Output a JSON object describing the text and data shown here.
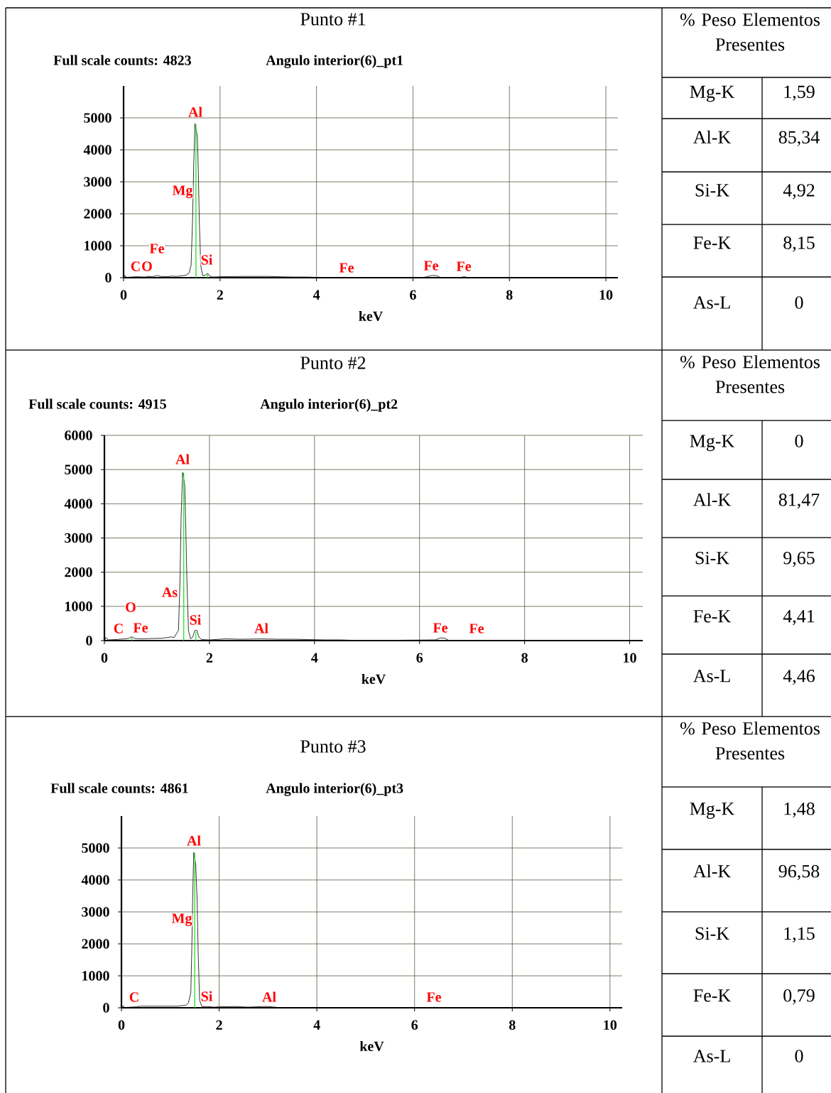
{
  "chart_data": [
    {
      "type": "line",
      "title": "Punto #1",
      "xlabel": "keV",
      "annotations": [
        "Full scale counts: 4823",
        "Angulo interior(6)_pt1",
        "Al",
        "Mg",
        "Fe",
        "C",
        "O",
        "Si",
        "Fe",
        "Fe",
        "Fe"
      ],
      "xlim": [
        0,
        10.25
      ],
      "xticks": [
        0,
        2,
        4,
        6,
        8,
        10
      ],
      "ylim": [
        0,
        6000
      ],
      "yticks": [
        0,
        1000,
        2000,
        3000,
        4000,
        5000
      ],
      "grid": true,
      "series": [
        {
          "type": "line",
          "color": "#000000",
          "x": [
            0,
            0.03,
            0.06,
            0.15,
            0.28,
            0.45,
            0.52,
            0.6,
            0.7,
            0.76,
            0.9,
            1.0,
            1.1,
            1.2,
            1.3,
            1.36,
            1.4,
            1.43,
            1.455,
            1.48,
            1.53,
            1.55,
            1.57,
            1.6,
            1.64,
            1.7,
            1.74,
            1.78,
            1.85,
            2.0,
            2.5,
            3.0,
            3.2,
            3.5,
            3.8,
            4.0,
            4.3,
            4.5,
            6.2,
            6.32,
            6.4,
            6.5,
            6.56,
            7.0,
            7.06,
            7.12,
            10.2
          ],
          "values": [
            0,
            70,
            10,
            20,
            30,
            20,
            40,
            30,
            70,
            40,
            30,
            50,
            40,
            60,
            80,
            150,
            400,
            1770,
            3570,
            4823,
            4420,
            3300,
            1790,
            370,
            60,
            80,
            140,
            60,
            20,
            30,
            40,
            40,
            30,
            20,
            20,
            10,
            10,
            0,
            0,
            40,
            70,
            60,
            10,
            10,
            30,
            10,
            0
          ]
        },
        {
          "type": "bar",
          "color": "#2ee62e",
          "x": [
            1.5,
            1.74
          ],
          "values": [
            4800,
            120
          ]
        }
      ]
    },
    {
      "type": "other",
      "title": "% Peso Elementos Presentes",
      "categories": [
        "Mg-K",
        "Al-K",
        "Si-K",
        "Fe-K",
        "As-L"
      ],
      "annotations": [
        "1,59",
        "85,34",
        "4,92",
        "8,15",
        "0"
      ]
    },
    {
      "type": "line",
      "title": "Punto #2",
      "xlabel": "keV",
      "annotations": [
        "Full scale counts: 4915",
        "Angulo interior(6)_pt2",
        "Al",
        "As",
        "O",
        "C",
        "Fe",
        "Si",
        "Al",
        "Fe",
        "Fe"
      ],
      "xlim": [
        0,
        10.25
      ],
      "xticks": [
        0,
        2,
        4,
        6,
        8,
        10
      ],
      "ylim": [
        0,
        6000
      ],
      "yticks": [
        0,
        1000,
        2000,
        3000,
        4000,
        5000,
        6000
      ],
      "grid": true,
      "series": [
        {
          "type": "line",
          "color": "#000000",
          "x": [
            0,
            0.03,
            0.07,
            0.2,
            0.3,
            0.45,
            0.52,
            0.58,
            0.7,
            0.9,
            1.1,
            1.2,
            1.28,
            1.33,
            1.37,
            1.41,
            1.44,
            1.46,
            1.49,
            1.53,
            1.55,
            1.57,
            1.6,
            1.64,
            1.68,
            1.72,
            1.76,
            1.8,
            1.85,
            2.0,
            2.3,
            2.6,
            3.0,
            3.3,
            3.6,
            3.9,
            4.2,
            4.5,
            4.7,
            4.8,
            6.3,
            6.4,
            6.48,
            6.55,
            10.2
          ],
          "values": [
            0,
            90,
            20,
            30,
            40,
            60,
            110,
            60,
            50,
            60,
            70,
            90,
            110,
            90,
            200,
            300,
            1780,
            3600,
            4915,
            4530,
            3240,
            1840,
            300,
            50,
            100,
            290,
            300,
            100,
            30,
            20,
            50,
            40,
            50,
            40,
            40,
            30,
            20,
            20,
            10,
            0,
            20,
            80,
            70,
            10,
            0
          ]
        },
        {
          "type": "bar",
          "color": "#2ee62e",
          "x": [
            0.52,
            1.51,
            1.74
          ],
          "values": [
            90,
            4900,
            250
          ]
        }
      ]
    },
    {
      "type": "other",
      "title": "% Peso Elementos Presentes",
      "categories": [
        "Mg-K",
        "Al-K",
        "Si-K",
        "Fe-K",
        "As-L"
      ],
      "annotations": [
        "0",
        "81,47",
        "9,65",
        "4,41",
        "4,46"
      ]
    },
    {
      "type": "line",
      "title": "Punto #3",
      "xlabel": "keV",
      "annotations": [
        "Full scale counts: 4861",
        "Angulo interior(6)_pt3",
        "Al",
        "Mg",
        "C",
        "Si",
        "Al",
        "Fe"
      ],
      "xlim": [
        0,
        10.25
      ],
      "xticks": [
        0,
        2,
        4,
        6,
        8,
        10
      ],
      "ylim": [
        0,
        6000
      ],
      "yticks": [
        0,
        1000,
        2000,
        3000,
        4000,
        5000
      ],
      "grid": true,
      "series": [
        {
          "type": "line",
          "color": "#000000",
          "x": [
            0,
            0.03,
            0.07,
            0.2,
            0.3,
            0.4,
            0.6,
            0.8,
            1.0,
            1.15,
            1.25,
            1.32,
            1.37,
            1.42,
            1.44,
            1.46,
            1.48,
            1.52,
            1.55,
            1.57,
            1.6,
            1.65,
            1.75,
            1.9,
            2.0,
            2.3,
            2.6,
            2.9,
            3.0,
            3.2,
            3.5,
            3.6,
            6.35,
            6.4,
            6.45,
            10.2
          ],
          "values": [
            0,
            60,
            10,
            20,
            30,
            50,
            50,
            50,
            50,
            50,
            70,
            80,
            150,
            470,
            1840,
            3600,
            4861,
            4500,
            3310,
            1740,
            230,
            30,
            40,
            20,
            30,
            40,
            20,
            40,
            40,
            10,
            10,
            0,
            0,
            20,
            0,
            0
          ]
        },
        {
          "type": "bar",
          "color": "#2ee62e",
          "x": [
            1.5
          ],
          "values": [
            4850
          ]
        }
      ]
    },
    {
      "type": "other",
      "title": "% Peso Elementos Presentes",
      "categories": [
        "Mg-K",
        "Al-K",
        "Si-K",
        "Fe-K",
        "As-L"
      ],
      "annotations": [
        "1,48",
        "96,58",
        "1,15",
        "0,79",
        "0"
      ]
    }
  ]
}
